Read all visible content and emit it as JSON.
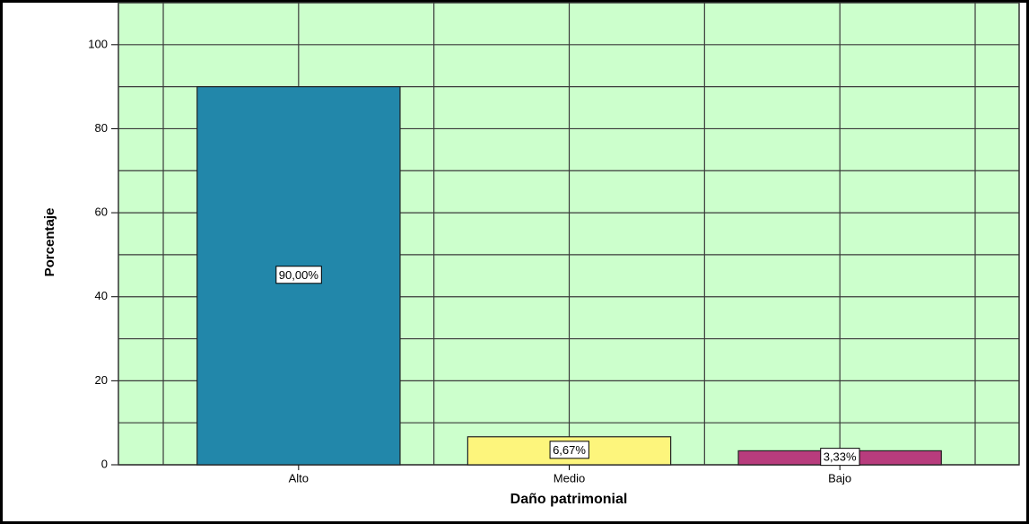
{
  "chart_data": {
    "type": "bar",
    "x_label": "Daño patrimonial",
    "y_label": "Porcentaje",
    "categories": [
      "Alto",
      "Medio",
      "Bajo"
    ],
    "values": [
      90,
      6.67,
      3.33
    ],
    "value_labels": [
      "90,00%",
      "6,67%",
      "3,33%"
    ],
    "colors": [
      "#2287aa",
      "#fdf57c",
      "#b83c7d"
    ],
    "ylim": [
      0,
      110
    ],
    "yticks": [
      0,
      20,
      40,
      60,
      80,
      100
    ],
    "grid": true
  }
}
